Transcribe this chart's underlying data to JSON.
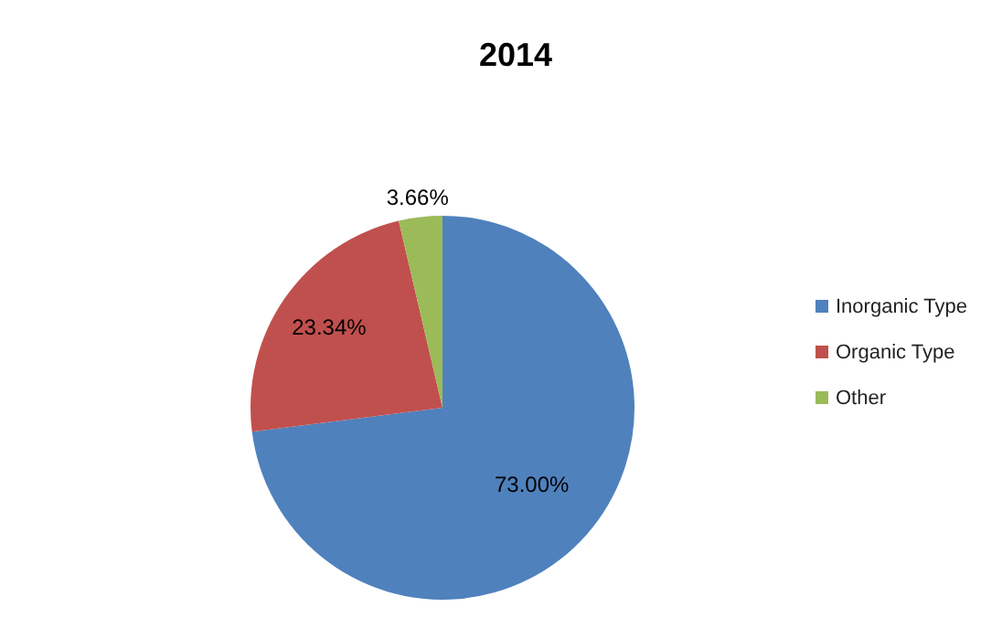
{
  "chart_data": {
    "type": "pie",
    "title": "2014",
    "categories": [
      "Inorganic Type",
      "Organic Type",
      "Other"
    ],
    "values": [
      73.0,
      23.34,
      3.66
    ],
    "colors": [
      "#4f81bd",
      "#c0504d",
      "#9bbb59"
    ],
    "value_labels": [
      "73.00%",
      "23.34%",
      "3.66%"
    ],
    "legend": "right"
  }
}
